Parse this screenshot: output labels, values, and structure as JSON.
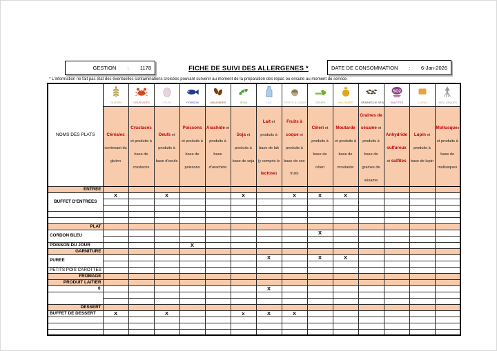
{
  "header": {
    "gestion_label": "GESTION",
    "gestion_colon": ":",
    "gestion_value": "1178",
    "title": "FICHE DE SUIVI DES ALLERGENES *",
    "date_label": "DATE DE CONSOMMATION",
    "date_colon": ":",
    "date_value": "6-Jan-2026",
    "footnote": "* L'information ne fait pas état des éventuelles contaminations croisées pouvant survenir au moment de la préparation des repas ou ensuite au moment du service."
  },
  "colors": {
    "section_bg": "#F8CBAD",
    "header_bg": "#F8CBAD",
    "allergen_red": "#C00000",
    "grid": "#2b2b2b"
  },
  "table": {
    "dish_header": "NOMS DES PLATS",
    "columns": [
      {
        "icon": "wheat-icon",
        "icon_label": "GLUTEN",
        "color": "#B09A3E",
        "title": "Céréales",
        "sub": " contenant du gluten"
      },
      {
        "icon": "crab-icon",
        "icon_label": "CRUSTACÉS",
        "color": "#D4491F",
        "title": "Crustacés",
        "sub": " et produits à base de crustacés"
      },
      {
        "icon": "egg-icon",
        "icon_label": "OEUFS",
        "color": "#C9AFC2",
        "title": "Oeufs",
        "sub": " et produits à base d'oeufs"
      },
      {
        "icon": "fish-icon",
        "icon_label": "POISSON",
        "color": "#1F3D8C",
        "title": "Poissons",
        "sub": " et produits à base de poissons"
      },
      {
        "icon": "peanut-icon",
        "icon_label": "ARACHIDES",
        "color": "#7B3F10",
        "title": "Arachide",
        "sub": " et produits à base d'arachide"
      },
      {
        "icon": "soy-icon",
        "icon_label": "SOJA",
        "color": "#4B9B2F",
        "title": "Soja",
        "sub": " et produits à base de soja"
      },
      {
        "icon": "milk-icon",
        "icon_label": "LAIT",
        "color": "#8FB8E0",
        "title": "Lait",
        "sub": " et produits à base de lait (y compris le ",
        "sub_red": "lactose",
        "sub2": ")"
      },
      {
        "icon": "nut-icon",
        "icon_label": "FRUITS À COQUE",
        "color": "#BCA886",
        "title": "Fruits à coque",
        "sub": " et produits à base de ces fruits"
      },
      {
        "icon": "celery-icon",
        "icon_label": "CÉLERI",
        "color": "#6AAF2E",
        "title": "Céleri",
        "sub": " et produits à base de céleri"
      },
      {
        "icon": "mustard-icon",
        "icon_label": "MOUTARDE",
        "color": "#DFA71E",
        "title": "Moutarde",
        "sub": " et produits à base de moutarde"
      },
      {
        "icon": "sesame-icon",
        "icon_label": "GRAINES DE SÉSAME",
        "color": "#4A3A28",
        "title": "Graines de sésame",
        "sub": " et produits à base de graines de sésame"
      },
      {
        "icon": "so2-icon",
        "icon_label": "SULFITES",
        "color": "#8E3A80",
        "title": "Anhydride sulfureux",
        "sub": " et ",
        "sub_red": "sulfites"
      },
      {
        "icon": "lupin-icon",
        "icon_label": "LUPIN",
        "color": "#E8A33D",
        "title": "Lupin",
        "sub": " et produits à base de lupin"
      },
      {
        "icon": "squid-icon",
        "icon_label": "MOLLUSQUES",
        "color": "#9A93A5",
        "title": "Mollusque",
        "sub": "s et produits à base de mollusques"
      }
    ],
    "rows": [
      {
        "type": "section",
        "label": "ENTREE"
      },
      {
        "type": "data",
        "label": "BUFFET D'ENTREES",
        "rowspan": 3,
        "align": "center",
        "bold": true,
        "marks": {
          "1": "X",
          "3": "X",
          "6": "X",
          "8": "X",
          "9": "X",
          "10": "X"
        }
      },
      {
        "type": "data",
        "label": null,
        "marks": {}
      },
      {
        "type": "data",
        "label": null,
        "marks": {}
      },
      {
        "type": "data",
        "label": "",
        "marks": {}
      },
      {
        "type": "data",
        "label": "",
        "marks": {}
      },
      {
        "type": "section",
        "label": "PLAT"
      },
      {
        "type": "data",
        "label": "CORDON BLEU",
        "rowspan": 2,
        "bold": true,
        "marks": {
          "9": "X"
        }
      },
      {
        "type": "data",
        "label": null,
        "marks": {}
      },
      {
        "type": "data",
        "label": "POISSON DU JOUR",
        "bold": true,
        "marks": {
          "4": "X"
        }
      },
      {
        "type": "section",
        "label": "GARNITURE"
      },
      {
        "type": "data",
        "label": "PUREE",
        "rowspan": 2,
        "bold": true,
        "marks": {
          "7": "X",
          "9": "X",
          "10": "X"
        }
      },
      {
        "type": "data",
        "label": null,
        "marks": {}
      },
      {
        "type": "data",
        "label": "PETITS POIS CAROTTES",
        "bold": false,
        "marks": {}
      },
      {
        "type": "section",
        "label": "FROMAGE"
      },
      {
        "type": "section",
        "label": "PRODUIT LAITIER"
      },
      {
        "type": "data",
        "label": "0",
        "align": "right",
        "bold": true,
        "marks": {
          "7": "X"
        }
      },
      {
        "type": "data",
        "label": "",
        "rowspan": 2,
        "marks": {}
      },
      {
        "type": "data",
        "label": null,
        "marks": {}
      },
      {
        "type": "section",
        "label": "DESSERT"
      },
      {
        "type": "data",
        "label": "BUFFET DE DESSERT",
        "bold": true,
        "marks": {
          "1": "X",
          "3": "X",
          "6": "x",
          "7": "X",
          "8": "X"
        }
      },
      {
        "type": "data",
        "label": "",
        "marks": {}
      },
      {
        "type": "data",
        "label": "",
        "marks": {}
      },
      {
        "type": "data",
        "label": "",
        "marks": {}
      }
    ]
  }
}
